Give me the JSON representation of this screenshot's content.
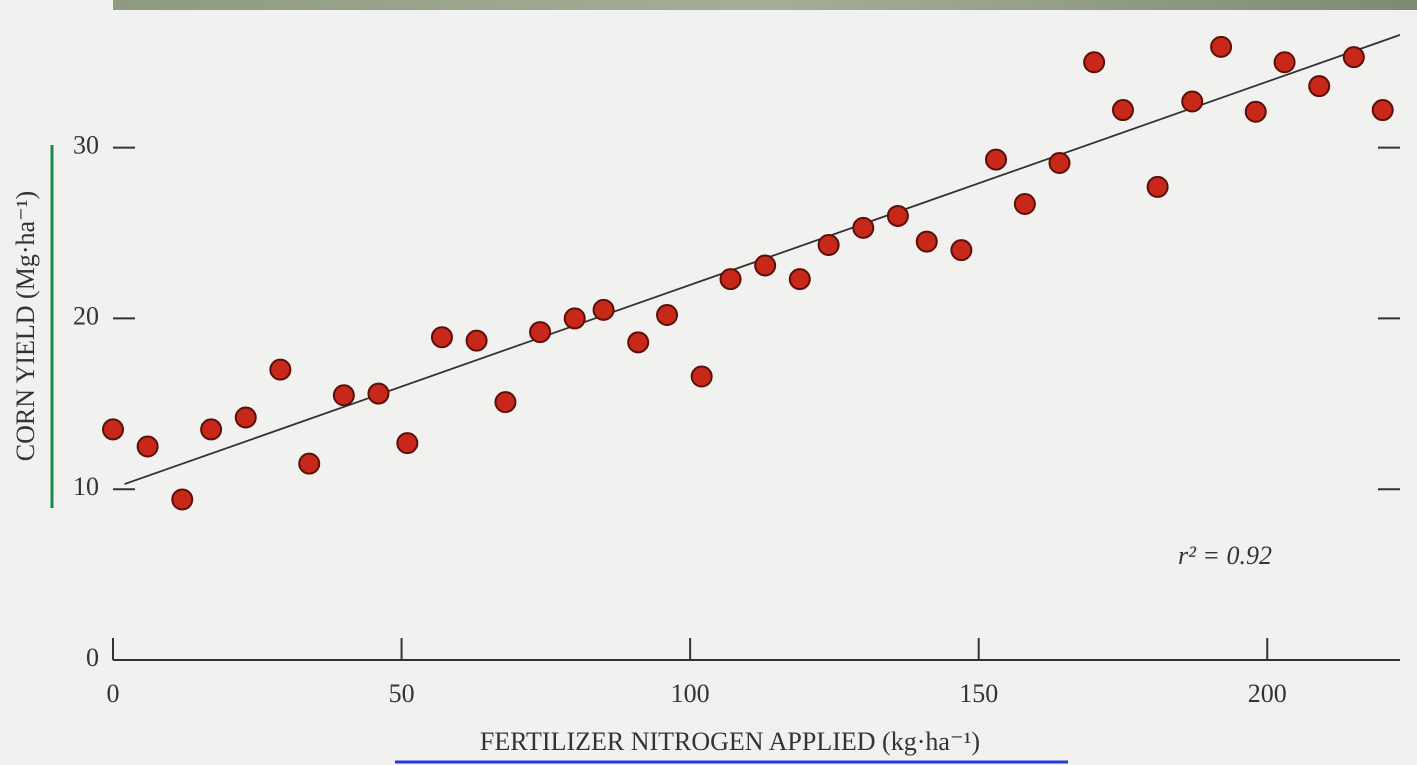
{
  "chart_data": {
    "type": "scatter",
    "x_label": "FERTILIZER NITROGEN APPLIED (kg·ha⁻¹)",
    "y_label": "CORN YIELD (Mg·ha⁻¹)",
    "annotation": "r² = 0.92",
    "color": "#c8281a",
    "xlim": [
      0,
      223
    ],
    "ylim": [
      0,
      38
    ],
    "xticks": [
      0,
      50,
      100,
      150,
      200
    ],
    "yticks": [
      0,
      10,
      20,
      30
    ],
    "x": [
      0,
      6,
      12,
      17,
      23,
      29,
      34,
      40,
      46,
      51,
      57,
      63,
      68,
      74,
      80,
      85,
      91,
      96,
      102,
      107,
      113,
      119,
      124,
      130,
      136,
      141,
      147,
      153,
      158,
      164,
      170,
      175,
      181,
      187,
      192,
      198,
      203,
      209,
      215,
      220
    ],
    "values": [
      13.5,
      12.5,
      9.4,
      13.5,
      14.2,
      17.0,
      11.5,
      15.5,
      15.6,
      12.7,
      18.9,
      18.7,
      15.1,
      19.2,
      20.0,
      20.5,
      18.6,
      20.2,
      16.6,
      22.3,
      23.1,
      22.3,
      24.3,
      25.3,
      26.0,
      24.5,
      24.0,
      29.3,
      26.7,
      29.1,
      35.0,
      32.2,
      27.7,
      32.7,
      35.9,
      32.1,
      35.0,
      33.6,
      35.3,
      32.2
    ],
    "trendline": {
      "x": [
        2,
        223
      ],
      "values": [
        10.3,
        36.6
      ]
    }
  }
}
